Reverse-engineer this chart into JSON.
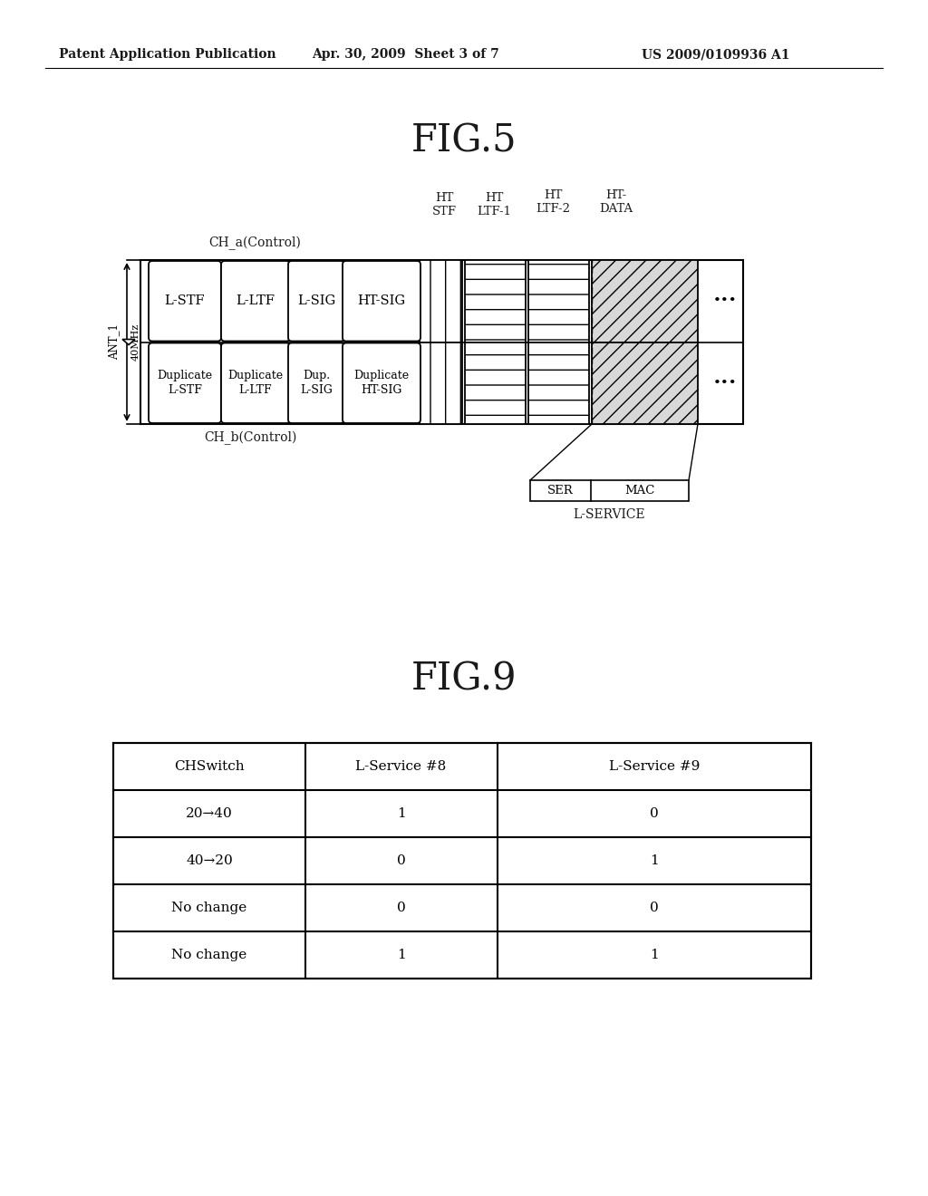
{
  "fig_title": "FIG.5",
  "fig2_title": "FIG.9",
  "header_left": "Patent Application Publication",
  "header_mid": "Apr. 30, 2009  Sheet 3 of 7",
  "header_right": "US 2009/0109936 A1",
  "ch_a_label": "CH_a(Control)",
  "ch_b_label": "CH_b(Control)",
  "ant_label": "ANT_1",
  "bw_label": "40MHz",
  "top_row_labels": [
    "L-STF",
    "L-LTF",
    "L-SIG",
    "HT-SIG"
  ],
  "bot_row_labels": [
    "Duplicate\nL-STF",
    "Duplicate\nL-LTF",
    "Dup.\nL-SIG",
    "Duplicate\nHT-SIG"
  ],
  "col_headers": [
    "HT\nSTF",
    "HT\nLTF-1",
    "HT\nLTF-2",
    "HT-\nDATA"
  ],
  "ser_mac_labels": [
    "SER",
    "MAC"
  ],
  "l_service_label": "L-SERVICE",
  "table_headers": [
    "CHSwitch",
    "L-Service #8",
    "L-Service #9"
  ],
  "table_rows": [
    [
      "20→40",
      "1",
      "0"
    ],
    [
      "40→20",
      "0",
      "1"
    ],
    [
      "No change",
      "0",
      "0"
    ],
    [
      "No change",
      "1",
      "1"
    ]
  ],
  "bg_color": "#ffffff",
  "text_color": "#1a1a1a",
  "line_color": "#1a1a1a"
}
